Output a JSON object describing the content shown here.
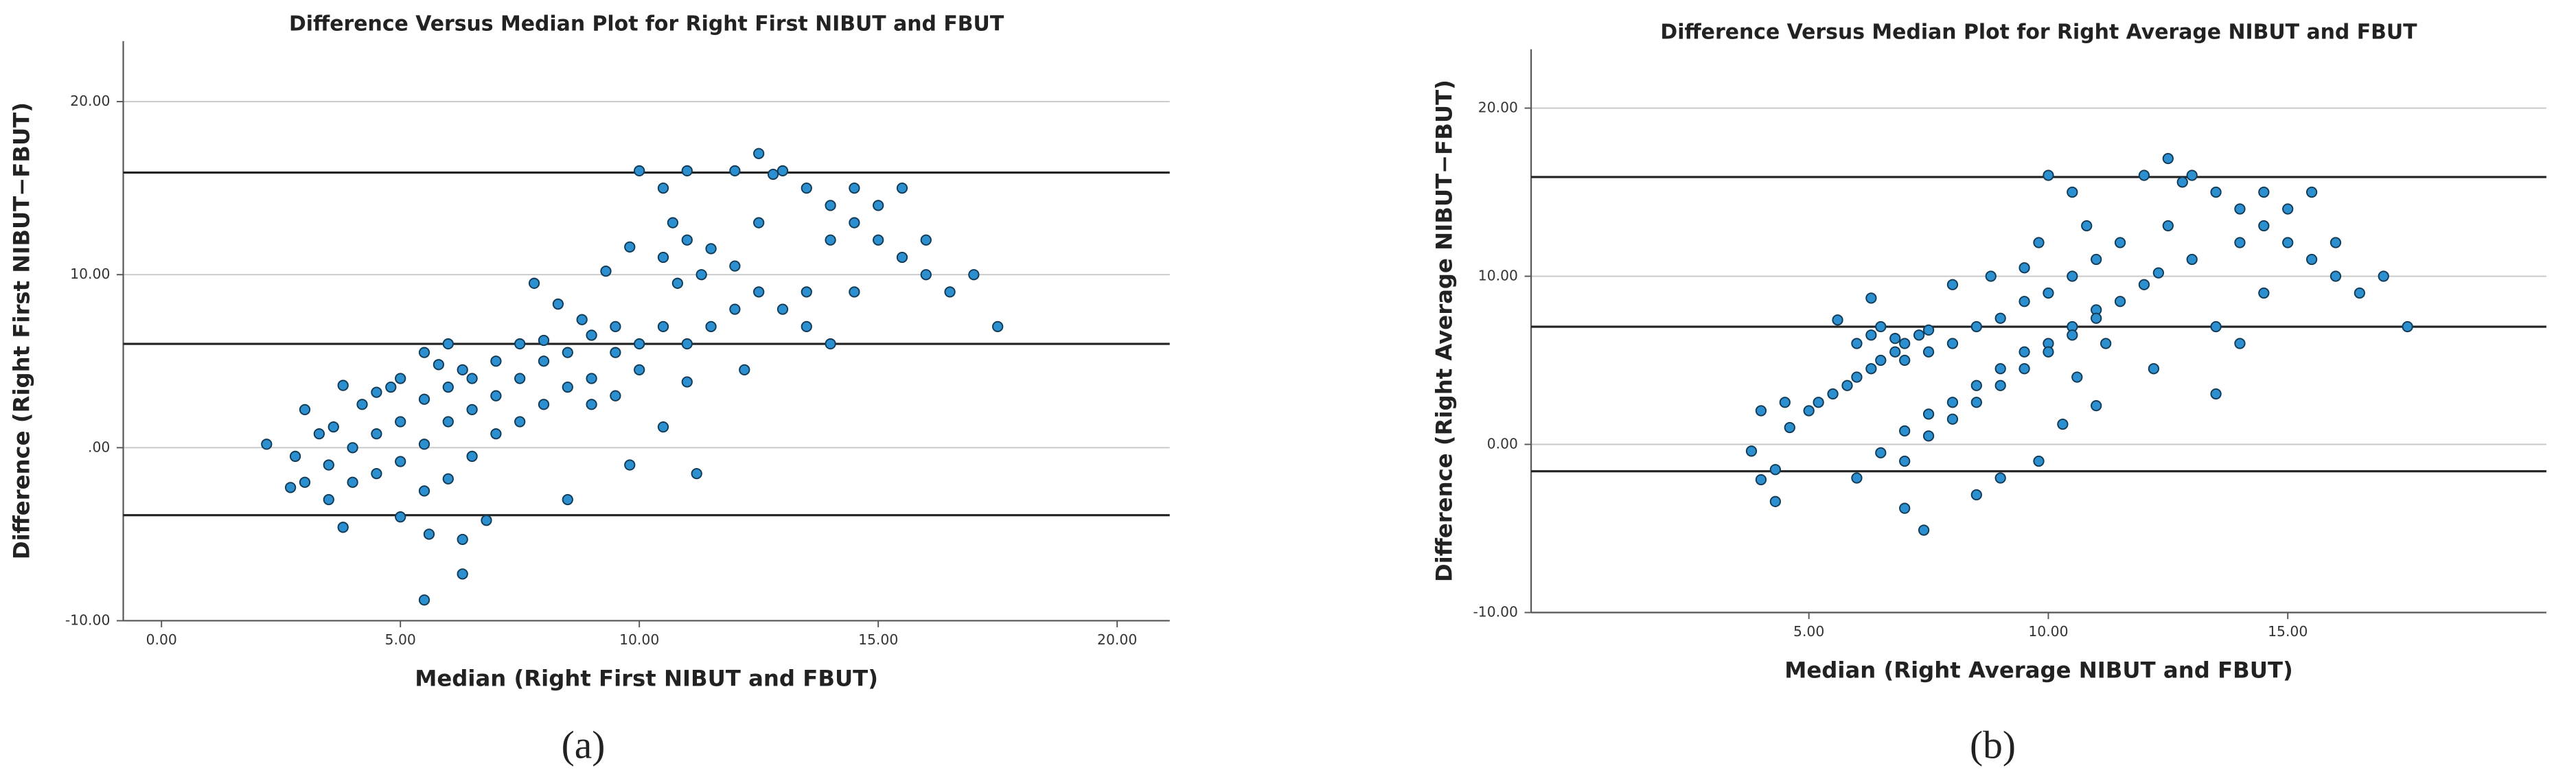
{
  "chart_data": [
    {
      "type": "scatter",
      "title": "Difference Versus Median Plot for Right First NIBUT and FBUT",
      "xlabel": "Median (Right First NIBUT and FBUT)",
      "ylabel": "Difference (Right First NIBUT−FBUT)",
      "panel_label": "(a)",
      "color": "#2b8fd0",
      "grid": true,
      "xlim": [
        -0.8,
        21.1
      ],
      "ylim": [
        -10,
        23.5
      ],
      "xticks": [
        {
          "value": 0,
          "label": "0.00"
        },
        {
          "value": 5,
          "label": "5.00"
        },
        {
          "value": 10,
          "label": "10.00"
        },
        {
          "value": 15,
          "label": "15.00"
        },
        {
          "value": 20,
          "label": "20.00"
        }
      ],
      "yticks": [
        {
          "value": -10,
          "label": "-10.00"
        },
        {
          "value": 0,
          "label": ".00"
        },
        {
          "value": 10,
          "label": "10.00"
        },
        {
          "value": 20,
          "label": "20.00"
        }
      ],
      "reference_lines": [
        15.9,
        6.0,
        -3.9
      ],
      "x": [
        2.2,
        2.8,
        3.0,
        3.3,
        3.6,
        3.8,
        4.2,
        4.5,
        4.8,
        5.0,
        5.5,
        5.8,
        6.0,
        6.3,
        2.7,
        3.0,
        3.5,
        4.0,
        4.5,
        5.0,
        5.5,
        6.0,
        6.5,
        7.0,
        7.5,
        8.0,
        3.5,
        4.0,
        4.5,
        5.0,
        5.5,
        6.0,
        6.5,
        7.0,
        7.5,
        8.0,
        8.5,
        9.0,
        9.5,
        5.0,
        5.5,
        6.0,
        6.5,
        7.0,
        7.5,
        8.0,
        8.5,
        9.0,
        9.5,
        10.0,
        10.5,
        3.8,
        5.6,
        5.5,
        6.3,
        6.3,
        6.8,
        8.5,
        9.8,
        11.2,
        7.8,
        8.3,
        8.8,
        9.3,
        9.8,
        10.0,
        10.5,
        10.7,
        11.0,
        11.0,
        10.5,
        10.8,
        11.3,
        11.5,
        12.0,
        12.5,
        12.5,
        12.0,
        12.5,
        13.0,
        13.0,
        12.0,
        11.5,
        11.0,
        10.5,
        11.0,
        13.5,
        13.5,
        14.0,
        14.0,
        14.0,
        14.5,
        14.5,
        14.5,
        15.0,
        15.0,
        15.5,
        15.5,
        16.0,
        16.0,
        16.5,
        17.0,
        17.5,
        13.5,
        12.8,
        12.2,
        9.0,
        9.5,
        10.0
      ],
      "y": [
        0.2,
        -0.5,
        2.2,
        0.8,
        1.2,
        3.6,
        2.5,
        3.2,
        3.5,
        4.0,
        5.5,
        4.8,
        6.0,
        4.5,
        -2.3,
        -2.0,
        -1.0,
        0.0,
        0.8,
        1.5,
        2.8,
        3.5,
        4.0,
        5.0,
        6.0,
        6.2,
        -3.0,
        -2.0,
        -1.5,
        -0.8,
        0.2,
        1.5,
        2.2,
        3.0,
        4.0,
        5.0,
        5.5,
        6.5,
        7.0,
        -4.0,
        -2.5,
        -1.8,
        -0.5,
        0.8,
        1.5,
        2.5,
        3.5,
        4.0,
        5.5,
        6.0,
        7.0,
        -4.6,
        -5.0,
        -8.8,
        -7.3,
        -5.3,
        -4.2,
        -3.0,
        -1.0,
        -1.5,
        9.5,
        8.3,
        7.4,
        10.2,
        11.6,
        16.0,
        15.0,
        13.0,
        16.0,
        12.0,
        11.0,
        9.5,
        10.0,
        11.5,
        16.0,
        17.0,
        13.0,
        10.5,
        9.0,
        16.0,
        8.0,
        8.0,
        7.0,
        6.0,
        1.2,
        3.8,
        15.0,
        7.0,
        14.0,
        12.0,
        6.0,
        15.0,
        13.0,
        9.0,
        14.0,
        12.0,
        15.0,
        11.0,
        12.0,
        10.0,
        9.0,
        10.0,
        7.0,
        9.0,
        15.8,
        4.5,
        2.5,
        3.0,
        4.5
      ]
    },
    {
      "type": "scatter",
      "title": "Difference Versus Median Plot for Right Average NIBUT and FBUT",
      "xlabel": "Median (Right Average NIBUT and FBUT)",
      "ylabel": "Difference (Right Average NIBUT−FBUT)",
      "panel_label": "(b)",
      "color": "#2b8fd0",
      "grid": true,
      "xlim": [
        -0.8,
        20.4
      ],
      "ylim": [
        -10,
        23.5
      ],
      "xticks": [
        {
          "value": 5,
          "label": "5.00"
        },
        {
          "value": 10,
          "label": "10.00"
        },
        {
          "value": 15,
          "label": "15.00"
        }
      ],
      "yticks": [
        {
          "value": -10,
          "label": "-10.00"
        },
        {
          "value": 0,
          "label": "0.00"
        },
        {
          "value": 10,
          "label": "10.00"
        },
        {
          "value": 20,
          "label": "20.00"
        }
      ],
      "reference_lines": [
        15.9,
        7.0,
        -1.6
      ],
      "x": [
        3.8,
        4.0,
        4.0,
        4.3,
        4.3,
        4.5,
        4.6,
        5.0,
        5.2,
        5.5,
        5.8,
        6.0,
        6.3,
        6.5,
        6.8,
        7.0,
        7.3,
        7.5,
        5.6,
        6.0,
        6.3,
        6.5,
        6.8,
        7.0,
        7.5,
        8.0,
        8.5,
        9.0,
        9.5,
        10.0,
        10.5,
        6.0,
        6.5,
        7.0,
        7.5,
        8.0,
        8.5,
        9.0,
        9.5,
        10.0,
        10.5,
        11.0,
        7.0,
        7.5,
        8.0,
        8.5,
        9.0,
        9.5,
        10.0,
        10.5,
        11.0,
        11.5,
        12.0,
        7.0,
        7.4,
        8.5,
        9.0,
        9.8,
        10.3,
        11.0,
        6.3,
        8.0,
        8.8,
        9.5,
        9.8,
        10.0,
        10.5,
        10.8,
        11.0,
        11.5,
        12.0,
        12.5,
        12.3,
        12.8,
        13.0,
        12.5,
        13.0,
        13.5,
        13.5,
        13.5,
        14.0,
        14.0,
        14.0,
        14.5,
        14.5,
        14.5,
        15.0,
        15.0,
        15.5,
        15.5,
        16.0,
        16.0,
        16.5,
        17.0,
        17.5,
        12.2,
        11.2,
        10.6
      ],
      "y": [
        -0.4,
        -2.1,
        2.0,
        -1.5,
        -3.4,
        2.5,
        1.0,
        2.0,
        2.5,
        3.0,
        3.5,
        4.0,
        4.5,
        5.0,
        5.5,
        6.0,
        6.5,
        6.8,
        7.4,
        6.0,
        6.5,
        7.0,
        6.3,
        5.0,
        5.5,
        6.0,
        7.0,
        7.5,
        8.5,
        9.0,
        10.0,
        -2.0,
        -0.5,
        0.8,
        1.8,
        2.5,
        3.5,
        4.5,
        5.5,
        6.0,
        7.0,
        8.0,
        -1.0,
        0.5,
        1.5,
        2.5,
        3.5,
        4.5,
        5.5,
        6.5,
        7.5,
        8.5,
        9.5,
        -3.8,
        -5.1,
        -3.0,
        -2.0,
        -1.0,
        1.2,
        2.3,
        8.7,
        9.5,
        10.0,
        10.5,
        12.0,
        16.0,
        15.0,
        13.0,
        11.0,
        12.0,
        16.0,
        13.0,
        10.2,
        15.6,
        16.0,
        17.0,
        11.0,
        15.0,
        7.0,
        3.0,
        14.0,
        12.0,
        6.0,
        15.0,
        13.0,
        9.0,
        14.0,
        12.0,
        15.0,
        11.0,
        12.0,
        10.0,
        9.0,
        10.0,
        7.0,
        4.5,
        6.0,
        4.0
      ]
    }
  ]
}
